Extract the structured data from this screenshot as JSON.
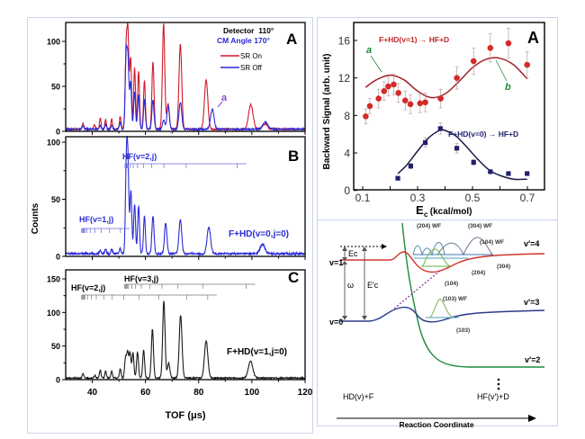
{
  "chart_data": [
    {
      "id": "tof_A",
      "type": "line",
      "panel_label": "A",
      "ylabel": "Counts",
      "xlabel": "TOF (μs)",
      "xlim": [
        30,
        120
      ],
      "ylim": [
        0,
        120
      ],
      "yticks": [
        0,
        50,
        100
      ],
      "annotations": [
        "Detector  110°",
        "CM Angle 170°"
      ],
      "peak_marker": "a",
      "legend": {
        "position": "top-right",
        "entries": [
          {
            "label": "SR On",
            "color": "#d11a2a"
          },
          {
            "label": "SR Off",
            "color": "#2a2ad8"
          }
        ]
      },
      "series": [
        {
          "name": "SR On",
          "color": "#d11a2a",
          "peaks": [
            [
              36.5,
              7
            ],
            [
              40.8,
              5
            ],
            [
              43,
              12
            ],
            [
              45,
              11
            ],
            [
              47.3,
              11
            ],
            [
              50.5,
              14
            ],
            [
              52.7,
              85
            ],
            [
              53.4,
              102
            ],
            [
              54.4,
              79
            ],
            [
              55.9,
              68
            ],
            [
              57.4,
              65
            ],
            [
              59.6,
              54
            ],
            [
              62.8,
              75
            ],
            [
              66.8,
              117
            ],
            [
              68.5,
              28
            ],
            [
              73.1,
              95
            ],
            [
              82.8,
              55
            ],
            [
              99.6,
              27
            ],
            [
              105,
              6
            ]
          ]
        },
        {
          "name": "SR Off",
          "color": "#2a2ad8",
          "peaks": [
            [
              36.5,
              4
            ],
            [
              43,
              4
            ],
            [
              45,
              5
            ],
            [
              47.3,
              5
            ],
            [
              50.5,
              8
            ],
            [
              52.7,
              78
            ],
            [
              53.4,
              74
            ],
            [
              54.4,
              52
            ],
            [
              55.9,
              42
            ],
            [
              57.4,
              38
            ],
            [
              59.6,
              32
            ],
            [
              62.8,
              33
            ],
            [
              66.8,
              10
            ],
            [
              68.5,
              26
            ],
            [
              73.1,
              30
            ],
            [
              85.1,
              22
            ],
            [
              105,
              8
            ]
          ]
        }
      ]
    },
    {
      "id": "tof_B",
      "type": "line",
      "panel_label": "B",
      "xlim": [
        30,
        120
      ],
      "ylim": [
        0,
        100
      ],
      "yticks": [
        0,
        50,
        100
      ],
      "annotations": [
        "HF(v=2,j)",
        "HF(v=1,j)",
        "F+HD(v=0,j=0)"
      ],
      "comb_v2": [
        52.3,
        52.6,
        52.9,
        53.2,
        53.5,
        54.3,
        55.4,
        57.0,
        59.2,
        62.3,
        66.9,
        75.3,
        94.5
      ],
      "comb_v1": [
        36.0,
        36.3,
        36.6,
        36.9,
        37.2,
        38.0,
        39.3,
        41.0,
        43.3,
        46.5,
        50.6
      ],
      "series": [
        {
          "name": "F+HD(v=0,j=0)",
          "color": "#2a2ad8",
          "peaks": [
            [
              43,
              3
            ],
            [
              45,
              4
            ],
            [
              47.3,
              4
            ],
            [
              50.5,
              5
            ],
            [
              52.8,
              76
            ],
            [
              53.4,
              72
            ],
            [
              54.5,
              55
            ],
            [
              55.9,
              44
            ],
            [
              57.4,
              42
            ],
            [
              59.6,
              33
            ],
            [
              62.8,
              33
            ],
            [
              67.6,
              27
            ],
            [
              73.1,
              30
            ],
            [
              83.8,
              23
            ],
            [
              104,
              8
            ]
          ]
        }
      ]
    },
    {
      "id": "tof_C",
      "type": "line",
      "panel_label": "C",
      "xlim": [
        30,
        120
      ],
      "ylim": [
        0,
        150
      ],
      "yticks": [
        0,
        50,
        100,
        150
      ],
      "xticks": [
        40,
        60,
        80,
        100,
        120
      ],
      "annotations": [
        "HF(v=3,j)",
        "HF(v=2,j)",
        "F+HD(v=1,j=0)"
      ],
      "comb_v3": [
        52.2,
        52.5,
        52.8,
        53.1,
        53.6,
        54.8,
        56.3,
        58.4,
        61.6,
        66.2,
        72.2,
        81.5,
        97.8
      ],
      "comb_v2": [
        36.0,
        36.3,
        36.6,
        36.9,
        37.3,
        38.2,
        39.6,
        41.5,
        44.3,
        47.5,
        51.8,
        57.5,
        65.0,
        75.5,
        83.4
      ],
      "series": [
        {
          "name": "F+HD(v=1,j=0)",
          "color": "#1a1a1a",
          "peaks": [
            [
              36.5,
              6
            ],
            [
              41,
              4
            ],
            [
              43,
              12
            ],
            [
              45,
              10
            ],
            [
              47.3,
              10
            ],
            [
              50.5,
              14
            ],
            [
              52.5,
              30
            ],
            [
              53.3,
              38
            ],
            [
              54.2,
              37
            ],
            [
              55.3,
              38
            ],
            [
              57,
              39
            ],
            [
              59.3,
              42
            ],
            [
              62.6,
              73
            ],
            [
              66.9,
              115
            ],
            [
              68.7,
              22
            ],
            [
              73.2,
              94
            ],
            [
              82.8,
              55
            ],
            [
              99.5,
              25
            ]
          ]
        }
      ]
    },
    {
      "id": "backward_signal",
      "type": "scatter",
      "panel_label": "A",
      "xlabel": "E",
      "xlabel_sub": "c",
      "xlabel_unit": " (kcal/mol)",
      "ylabel": "Backward Signal (arb. unit)",
      "xlim": [
        0.1,
        0.72
      ],
      "ylim": [
        0,
        17.5
      ],
      "xticks": [
        0.1,
        0.3,
        0.5,
        0.7
      ],
      "yticks": [
        0,
        4,
        8,
        12,
        16
      ],
      "annotations": [
        "a",
        "b"
      ],
      "series": [
        {
          "name": "F+HD(v=1) → HF+D",
          "color": "#d42a2a",
          "marker": "circle",
          "x": [
            0.111,
            0.126,
            0.158,
            0.178,
            0.193,
            0.213,
            0.23,
            0.255,
            0.274,
            0.309,
            0.328,
            0.384,
            0.443,
            0.504,
            0.565,
            0.631,
            0.699
          ],
          "y": [
            7.9,
            9.0,
            9.8,
            10.6,
            11.1,
            11.3,
            10.4,
            9.6,
            9.2,
            9.3,
            9.4,
            9.8,
            12.0,
            13.8,
            15.2,
            15.7,
            13.4
          ],
          "err": [
            0.8,
            0.8,
            1.0,
            1.0,
            1.0,
            1.1,
            1.0,
            1.0,
            1.0,
            1.0,
            1.0,
            1.0,
            1.2,
            1.4,
            1.5,
            1.6,
            1.4
          ],
          "fit": {
            "type": "damped-sine",
            "x": [
              0.111,
              0.15,
              0.2,
              0.25,
              0.3,
              0.35,
              0.4,
              0.45,
              0.5,
              0.55,
              0.6,
              0.65,
              0.699
            ],
            "y": [
              11.0,
              11.8,
              12.3,
              11.8,
              10.6,
              9.9,
              10.3,
              11.6,
              13.1,
              14.0,
              14.1,
              13.4,
              11.9
            ]
          }
        },
        {
          "name": "F+HD(v=0) → HF+D",
          "color": "#1f1f6e",
          "marker": "square",
          "x": [
            0.228,
            0.275,
            0.328,
            0.383,
            0.443,
            0.504,
            0.565,
            0.631,
            0.699
          ],
          "y": [
            1.3,
            2.6,
            5.1,
            6.6,
            4.5,
            3.0,
            2.0,
            1.8,
            1.8
          ],
          "err": [
            0.2,
            0.3,
            0.5,
            0.6,
            0.5,
            0.3,
            0.2,
            0.2,
            0.2
          ],
          "fit": {
            "type": "gaussian",
            "x": [
              0.228,
              0.26,
              0.3,
              0.34,
              0.38,
              0.4,
              0.44,
              0.48,
              0.52,
              0.56,
              0.6,
              0.65,
              0.699
            ],
            "y": [
              1.8,
              2.7,
              4.2,
              5.6,
              6.4,
              6.4,
              5.8,
              4.6,
              3.3,
              2.2,
              1.6,
              1.2,
              1.2
            ]
          }
        }
      ]
    }
  ],
  "diagram": {
    "title": "Reaction Coordinate",
    "reactant_label": "HD(v)+F",
    "product_label": "HF(v′)+D",
    "levels": {
      "v1": "v=1",
      "v0": "v=0",
      "vp4": "v′=4",
      "vp3": "v′=3",
      "vp2": "v′=2"
    },
    "energy_labels": {
      "ec": "Ec",
      "ecp": "E′c",
      "omega": "ω"
    },
    "wf_labels": [
      "(204) WF",
      "(304) WF",
      "(104) WF",
      "(103) WF"
    ],
    "state_labels": [
      "(204)",
      "(304)",
      "(104)",
      "(103)"
    ],
    "colors": {
      "v1_curve": "#d0352a",
      "v0_curve": "#2a3a8a",
      "vp2_curve": "#1e8a3a",
      "wf": "#5a8aa8"
    }
  }
}
